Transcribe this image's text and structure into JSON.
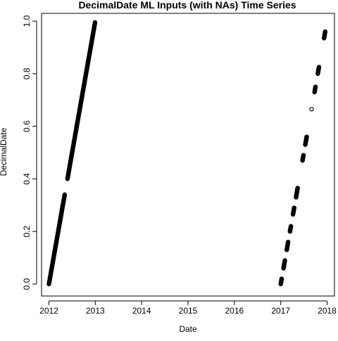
{
  "chart_data": {
    "type": "scatter",
    "title": "DecimalDate ML Inputs (with NAs) Time Series",
    "xlabel": "Date",
    "ylabel": "DecimalDate",
    "xlim": [
      2012,
      2018
    ],
    "ylim": [
      0.0,
      1.0
    ],
    "x_ticks": [
      2012,
      2013,
      2014,
      2015,
      2016,
      2017,
      2018
    ],
    "x_tick_labels": [
      "2012",
      "2013",
      "2014",
      "2015",
      "2016",
      "2017",
      "2018"
    ],
    "y_ticks": [
      0.0,
      0.2,
      0.4,
      0.6,
      0.8,
      1.0
    ],
    "y_tick_labels": [
      "0.0",
      "0.2",
      "0.4",
      "0.6",
      "0.8",
      "1.0"
    ],
    "grid": false,
    "marker": "open circle",
    "point_color": "#000000",
    "segments": [
      {
        "x_start": 2012.0,
        "x_end": 2012.34,
        "y_start": 0.0,
        "y_end": 0.34,
        "step": 0.0027
      },
      {
        "x_start": 2012.4,
        "x_end": 2012.995,
        "y_start": 0.4,
        "y_end": 0.995,
        "step": 0.0027
      },
      {
        "x_start": 2017.0,
        "x_end": 2017.02,
        "y_start": 0.0,
        "y_end": 0.02,
        "step": 0.0027
      },
      {
        "x_start": 2017.06,
        "x_end": 2017.09,
        "y_start": 0.06,
        "y_end": 0.09,
        "step": 0.0027
      },
      {
        "x_start": 2017.13,
        "x_end": 2017.16,
        "y_start": 0.13,
        "y_end": 0.16,
        "step": 0.0027
      },
      {
        "x_start": 2017.2,
        "x_end": 2017.22,
        "y_start": 0.2,
        "y_end": 0.22,
        "step": 0.0027
      },
      {
        "x_start": 2017.265,
        "x_end": 2017.29,
        "y_start": 0.265,
        "y_end": 0.29,
        "step": 0.0027
      },
      {
        "x_start": 2017.33,
        "x_end": 2017.365,
        "y_start": 0.33,
        "y_end": 0.365,
        "step": 0.0027
      },
      {
        "x_start": 2017.47,
        "x_end": 2017.49,
        "y_start": 0.47,
        "y_end": 0.49,
        "step": 0.0027
      },
      {
        "x_start": 2017.53,
        "x_end": 2017.56,
        "y_start": 0.53,
        "y_end": 0.56,
        "step": 0.0027
      },
      {
        "x_start": 2017.73,
        "x_end": 2017.75,
        "y_start": 0.73,
        "y_end": 0.75,
        "step": 0.0027
      },
      {
        "x_start": 2017.8,
        "x_end": 2017.825,
        "y_start": 0.8,
        "y_end": 0.825,
        "step": 0.0027
      },
      {
        "x_start": 2017.935,
        "x_end": 2017.96,
        "y_start": 0.935,
        "y_end": 0.96,
        "step": 0.0027
      }
    ],
    "points": [
      {
        "x": 2017.665,
        "y": 0.665
      }
    ]
  }
}
